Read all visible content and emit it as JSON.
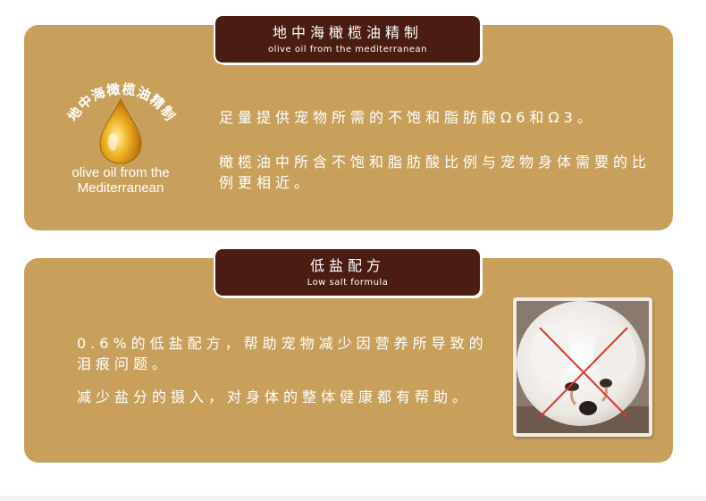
{
  "section1": {
    "title": "地中海橄榄油精制",
    "subtitle": "olive oil from the mediterranean",
    "emblem_arc_text": "地中海橄榄油精制",
    "emblem_caption_line1": "olive oil from the",
    "emblem_caption_line2": "Mediterranean",
    "paragraph1": "足量提供宠物所需的不饱和脂肪酸Ω6和Ω3。",
    "paragraph2": "橄榄油中所含不饱和脂肪酸比例与宠物身体需要的比例更相近。"
  },
  "section2": {
    "title": "低盐配方",
    "subtitle": "Low salt formula",
    "paragraph1": "0.6%的低盐配方，帮助宠物减少因营养所导致的泪痕问题。",
    "paragraph2": "减少盐分的摄入，对身体的整体健康都有帮助。"
  },
  "colors": {
    "panel": "#c8a05c",
    "tag": "#4a1c12",
    "cross": "#d9352c",
    "oil_drop": "#e3a21a"
  }
}
